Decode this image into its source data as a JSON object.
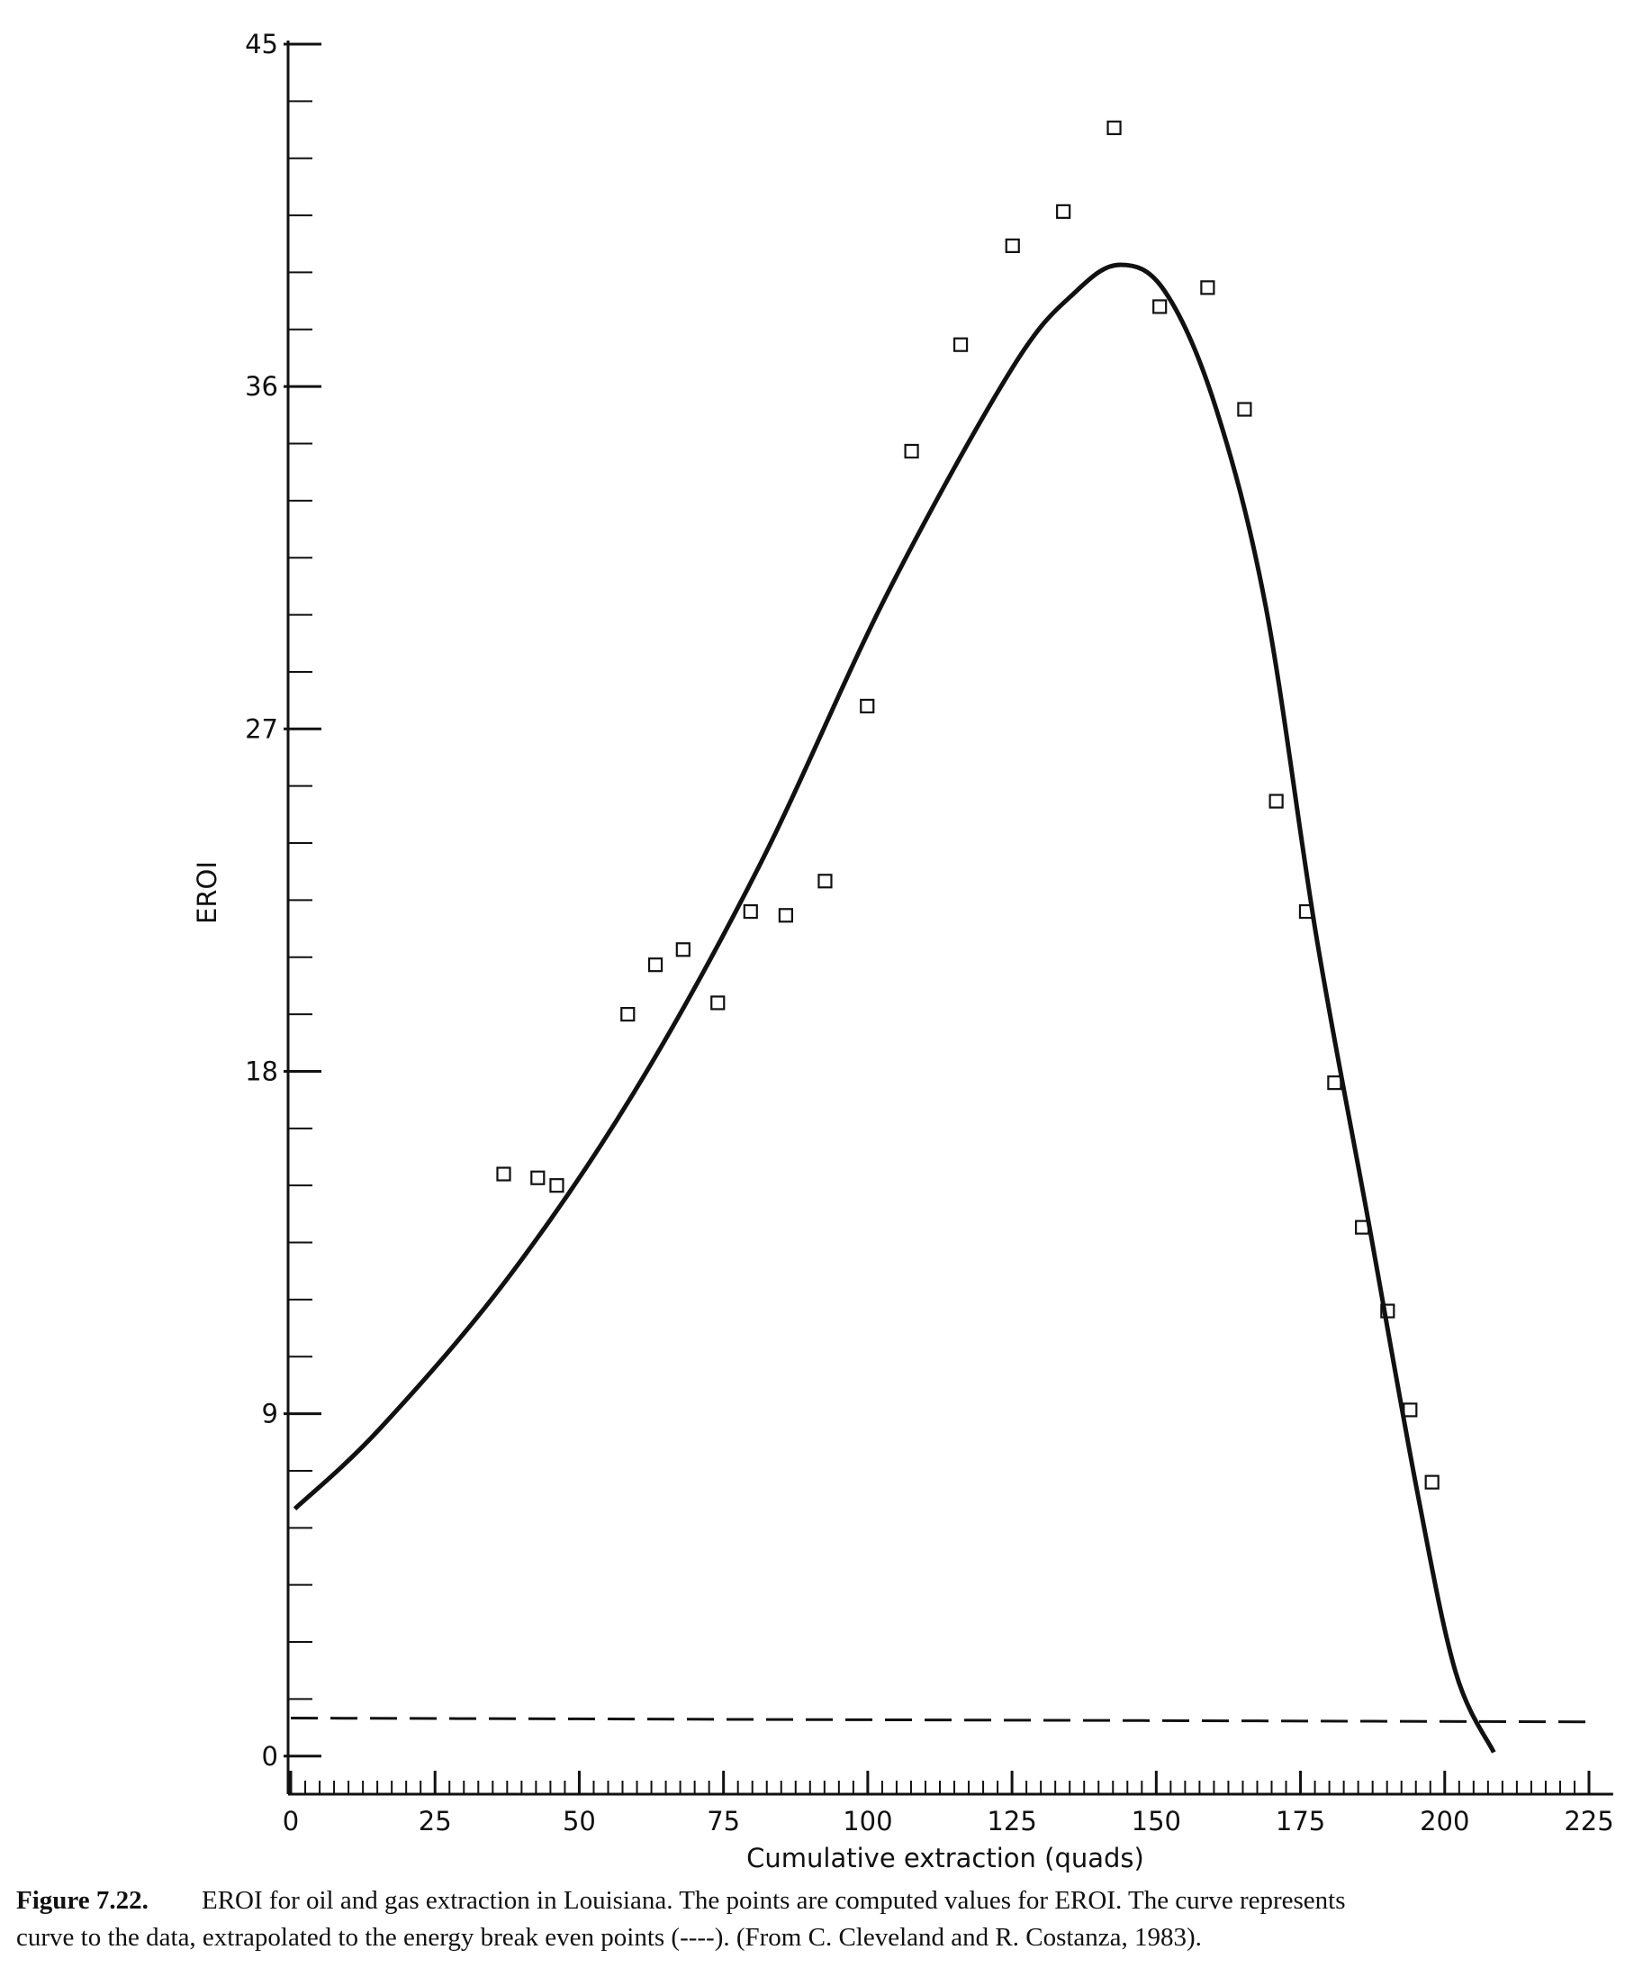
{
  "chart_data": {
    "type": "scatter",
    "xlabel": "Cumulative extraction (quads)",
    "ylabel": "EROI",
    "xlim": [
      0,
      227
    ],
    "ylim": [
      -1,
      45
    ],
    "xticks": [
      0,
      25,
      50,
      75,
      100,
      125,
      150,
      175,
      200,
      225
    ],
    "yticks": [
      0,
      9,
      18,
      27,
      36,
      45
    ],
    "xminorticks": [
      2.5,
      5,
      7.5,
      10,
      12.5,
      15,
      17.5,
      20,
      22.5,
      27.5,
      30,
      32.5,
      35,
      37.5,
      40,
      42.5,
      45,
      47.5,
      52.5,
      55,
      57.5,
      60,
      62.5,
      65,
      67.5,
      70,
      72.5,
      77.5,
      80,
      82.5,
      85,
      87.5,
      90,
      92.5,
      95,
      97.5,
      102.5,
      105,
      107.5,
      110,
      112.5,
      115,
      117.5,
      120,
      122.5,
      127.5,
      130,
      132.5,
      135,
      137.5,
      140,
      142.5,
      145,
      147.5,
      152.5,
      155,
      157.5,
      160,
      162.5,
      165,
      167.5,
      170,
      172.5,
      177.5,
      180,
      182.5,
      185,
      187.5,
      190,
      192.5,
      195,
      197.5,
      202.5,
      205,
      207.5,
      210,
      212.5,
      215,
      217.5,
      220,
      222.5
    ],
    "yminorticks": [
      1.5,
      3,
      4.5,
      6,
      7.5,
      10.5,
      12,
      13.5,
      15,
      16.5,
      19.5,
      21,
      22.5,
      24,
      25.5,
      28.5,
      30,
      31.5,
      33,
      34.5,
      37.5,
      39,
      40.5,
      42,
      43.5
    ],
    "series": [
      {
        "type": "scatter",
        "color": "#111111",
        "x": [
          36.9,
          42.8,
          46.1,
          58.4,
          63.2,
          68.0,
          74.0,
          79.7,
          85.8,
          92.6,
          99.9,
          107.6,
          116.1,
          125.1,
          133.9,
          142.7,
          150.6,
          158.9,
          165.3,
          170.8,
          176.0,
          180.9,
          185.7,
          190.1,
          194.0,
          197.8
        ],
        "values": [
          15.3,
          15.2,
          15.0,
          19.5,
          20.8,
          21.2,
          19.8,
          22.2,
          22.1,
          23.0,
          27.6,
          34.3,
          37.1,
          39.7,
          40.6,
          42.8,
          38.1,
          38.6,
          35.4,
          25.1,
          22.2,
          17.7,
          13.9,
          11.7,
          9.1,
          7.2
        ]
      },
      {
        "type": "line",
        "color": "#111111",
        "x": [
          0.7,
          15.4,
          37.3,
          59.3,
          81.2,
          103.2,
          125.1,
          136.1,
          143.8,
          151.5,
          160.2,
          169.0,
          177.8,
          186.6,
          195.3,
          201.9,
          208.5
        ],
        "values": [
          6.5,
          8.6,
          12.5,
          17.4,
          23.4,
          30.5,
          36.5,
          38.5,
          39.2,
          38.5,
          35.5,
          30.2,
          21.5,
          14.2,
          6.9,
          2.2,
          0.1
        ]
      },
      {
        "type": "line",
        "dashed": true,
        "color": "#111111",
        "x": [
          0,
          225
        ],
        "values": [
          1.0,
          0.9
        ]
      }
    ],
    "caption": {
      "label": "Figure 7.22.",
      "lines": [
        "EROI for oil and gas extraction in Louisiana. The points are computed values for EROI. The curve represents",
        "curve to the data, extrapolated to the energy break even points (----). (From C. Cleveland and R. Costanza, 1983)."
      ]
    }
  }
}
